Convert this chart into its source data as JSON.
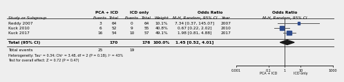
{
  "studies": [
    "Reddy 2007",
    "Kuck 2010",
    "Kuck 2017"
  ],
  "or": [
    7.34,
    0.67,
    1.98
  ],
  "ci_low": [
    0.37,
    0.22,
    0.81
  ],
  "ci_high": [
    145.07,
    2.02,
    4.88
  ],
  "weights": [
    10.1,
    40.8,
    49.1
  ],
  "total_or": 1.45,
  "total_ci_low": 0.52,
  "total_ci_high": 4.01,
  "years": [
    "2007",
    "2010",
    "2017"
  ],
  "pca_icd_events": [
    3,
    6,
    16
  ],
  "pca_icd_total": [
    64,
    52,
    54
  ],
  "icd_events": [
    0,
    9,
    10
  ],
  "icd_total": [
    64,
    55,
    57
  ],
  "total_pca_total": 170,
  "total_icd_total": 176,
  "total_pca_events": 25,
  "total_icd_events": 19,
  "or_texts": [
    "7.34 [0.37, 145.07]",
    "0.67 [0.22, 2.02]",
    "1.98 [0.81, 4.88]"
  ],
  "total_or_text": "1.45 [0.52, 4.01]",
  "total_weight_text": "100.0%",
  "het_text": "Heterogeneity: Tau² = 0.34; Chi² = 3.48, df = 2 (P = 0.18); I² = 43%",
  "test_text": "Test for overall effect: Z = 0.72 (P = 0.47)",
  "square_color": "#2E4B8C",
  "diamond_color": "#1a1a1a",
  "line_color": "#555555",
  "axis_min": 0.001,
  "axis_max": 1000,
  "axis_ticks": [
    0.001,
    0.1,
    1,
    10,
    1000
  ],
  "axis_tick_labels": [
    "0.001",
    "0.1",
    "1",
    "10",
    "1000"
  ],
  "xlabel_left": "PCA + ICD",
  "xlabel_right": "ICD only",
  "bg_color": "#eeeeee"
}
